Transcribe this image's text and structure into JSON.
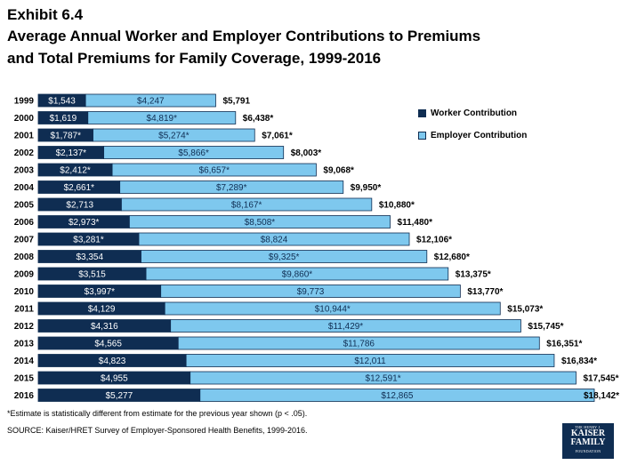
{
  "exhibit": "Exhibit 6.4",
  "title_line1": "Average Annual Worker and Employer Contributions to Premiums",
  "title_line2": "and Total Premiums for Family Coverage, 1999-2016",
  "footnote": "*Estimate is statistically different from estimate for the previous year shown (p < .05).",
  "source": "SOURCE:  Kaiser/HRET Survey of Employer-Sponsored Health Benefits, 1999-2016.",
  "logo": {
    "top": "THE HENRY J.",
    "line1": "KAISER",
    "line2": "FAMILY",
    "bottom": "FOUNDATION"
  },
  "colors": {
    "worker": "#0f2d52",
    "employer": "#7ec8ee",
    "bar_edge": "#0f2d52"
  },
  "chart_data": {
    "type": "bar",
    "orientation": "horizontal",
    "stacked": true,
    "categories": [
      "1999",
      "2000",
      "2001",
      "2002",
      "2003",
      "2004",
      "2005",
      "2006",
      "2007",
      "2008",
      "2009",
      "2010",
      "2011",
      "2012",
      "2013",
      "2014",
      "2015",
      "2016"
    ],
    "series": [
      {
        "name": "Worker Contribution",
        "values": [
          1543,
          1619,
          1787,
          2137,
          2412,
          2661,
          2713,
          2973,
          3281,
          3354,
          3515,
          3997,
          4129,
          4316,
          4565,
          4823,
          4955,
          5277
        ],
        "labels": [
          "$1,543",
          "$1,619",
          "$1,787*",
          "$2,137*",
          "$2,412*",
          "$2,661*",
          "$2,713",
          "$2,973*",
          "$3,281*",
          "$3,354",
          "$3,515",
          "$3,997*",
          "$4,129",
          "$4,316",
          "$4,565",
          "$4,823",
          "$4,955",
          "$5,277"
        ]
      },
      {
        "name": "Employer Contribution",
        "values": [
          4247,
          4819,
          5274,
          5866,
          6657,
          7289,
          8167,
          8508,
          8824,
          9325,
          9860,
          9773,
          10944,
          11429,
          11786,
          12011,
          12591,
          12865
        ],
        "labels": [
          "$4,247",
          "$4,819*",
          "$5,274*",
          "$5,866*",
          "$6,657*",
          "$7,289*",
          "$8,167*",
          "$8,508*",
          "$8,824",
          "$9,325*",
          "$9,860*",
          "$9,773",
          "$10,944*",
          "$11,429*",
          "$11,786",
          "$12,011",
          "$12,591*",
          "$12,865"
        ]
      }
    ],
    "totals": [
      5791,
      6438,
      7061,
      8003,
      9068,
      9950,
      10880,
      11480,
      12106,
      12680,
      13375,
      13770,
      15073,
      15745,
      16351,
      16834,
      17545,
      18142
    ],
    "total_labels": [
      "$5,791",
      "$6,438*",
      "$7,061*",
      "$8,003*",
      "$9,068*",
      "$9,950*",
      "$10,880*",
      "$11,480*",
      "$12,106*",
      "$12,680*",
      "$13,375*",
      "$13,770*",
      "$15,073*",
      "$15,745*",
      "$16,351*",
      "$16,834*",
      "$17,545*",
      "$18,142*"
    ],
    "xlim": [
      0,
      18142
    ],
    "legend": "right",
    "grid": false
  }
}
